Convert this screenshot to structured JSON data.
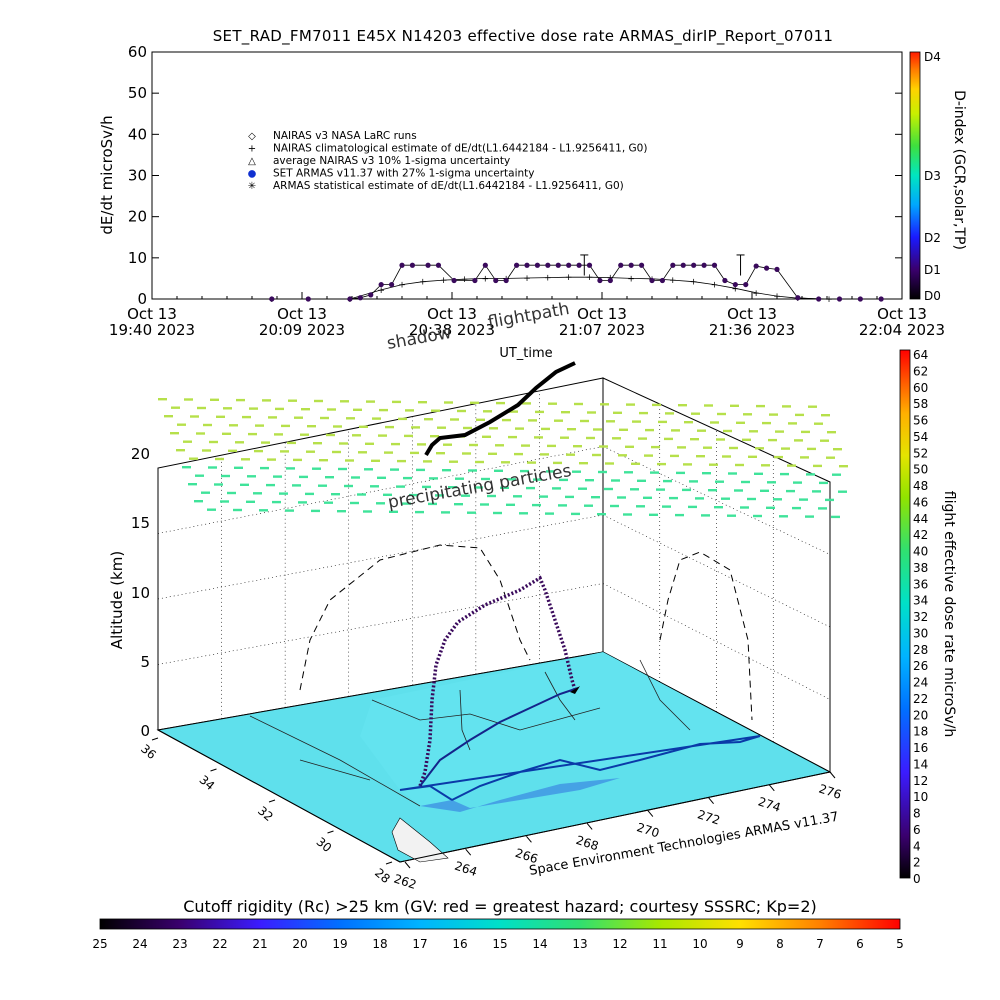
{
  "title": "SET_RAD_FM7011   E45X N14203 effective dose rate ARMAS_dirIP_Report_07011",
  "colors": {
    "series": "#3a0a5c",
    "climatology": "#000000",
    "ocean": "#5fe0ec",
    "precipitating": "#b6e04a",
    "precipitating_low": "#3fe39a"
  },
  "top_chart": {
    "ylabel": "dE/dt microSv/h",
    "ylim": [
      0,
      60
    ],
    "yticks": [
      "0",
      "10",
      "20",
      "30",
      "40",
      "50",
      "60"
    ],
    "xlabel": "UT_time",
    "xticks": [
      {
        "l1": "Oct 13",
        "l2": "19:40 2023"
      },
      {
        "l1": "Oct 13",
        "l2": "20:09 2023"
      },
      {
        "l1": "Oct 13",
        "l2": "20:38 2023"
      },
      {
        "l1": "Oct 13",
        "l2": "21:07 2023"
      },
      {
        "l1": "Oct 13",
        "l2": "21:36 2023"
      },
      {
        "l1": "Oct 13",
        "l2": "22:04 2023"
      }
    ],
    "legend": [
      {
        "symbol": "◇",
        "text": "NAIRAS v3 NASA LaRC runs"
      },
      {
        "symbol": "+",
        "text": "NAIRAS climatological estimate of dE/dt(L1.6442184 - L1.9256411, G0)"
      },
      {
        "symbol": "△",
        "text": "average NAIRAS v3 10% 1-sigma uncertainty"
      },
      {
        "symbol": "●",
        "text": "SET ARMAS v11.37 with 27% 1-sigma uncertainty"
      },
      {
        "symbol": "✳",
        "text": "ARMAS statistical estimate of dE/dt(L1.6442184 - L1.9256411, G0)"
      }
    ],
    "right_axis": {
      "label": "D-index (GCR,solar,TP)",
      "ticks": [
        "D4",
        "D3",
        "D2",
        "D1",
        "D0"
      ]
    }
  },
  "chart_data": [
    {
      "type": "line",
      "title": "SET_RAD_FM7011   E45X N14203 effective dose rate ARMAS_dirIP_Report_07011",
      "xlabel": "UT_time",
      "ylabel": "dE/dt microSv/h",
      "x_unit": "minutes after Oct 13 19:40 2023 UT",
      "xlim": [
        0,
        144
      ],
      "ylim": [
        0,
        60
      ],
      "series": [
        {
          "name": "SET ARMAS v11.37 with 27% 1-sigma uncertainty",
          "x": [
            23,
            30,
            38,
            40,
            42,
            44,
            46,
            48,
            50,
            53,
            55,
            58,
            62,
            64,
            66,
            68,
            70,
            72,
            74,
            76,
            78,
            80,
            82,
            84,
            86,
            88,
            90,
            92,
            94,
            96,
            98,
            100,
            102,
            104,
            106,
            108,
            110,
            112,
            114,
            116,
            118,
            120,
            124,
            128,
            132,
            136,
            140
          ],
          "y": [
            0,
            0,
            0,
            0.3,
            1,
            3.5,
            3.5,
            8.2,
            8.2,
            8.2,
            8.2,
            4.5,
            4.5,
            8.2,
            4.5,
            4.5,
            8.2,
            8.2,
            8.2,
            8.2,
            8.2,
            8.2,
            8.2,
            8.2,
            4.5,
            4.5,
            8.2,
            8.2,
            8.2,
            4.5,
            4.5,
            8.2,
            8.2,
            8.2,
            8.2,
            8.2,
            4.5,
            3.5,
            3.5,
            8.0,
            7.5,
            7.2,
            0.3,
            0,
            0,
            0,
            0
          ]
        },
        {
          "name": "NAIRAS climatological estimate of dE/dt(L1.6442184 - L1.9256411, G0)",
          "x": [
            23,
            38,
            44,
            48,
            52,
            56,
            60,
            64,
            68,
            72,
            76,
            80,
            84,
            88,
            92,
            96,
            100,
            104,
            108,
            112,
            116,
            120,
            124,
            130
          ],
          "y": [
            0,
            0,
            2.2,
            3.5,
            4.2,
            4.6,
            4.8,
            5.0,
            5.0,
            5.1,
            5.2,
            5.3,
            5.3,
            5.2,
            5.0,
            4.9,
            4.6,
            4.2,
            3.5,
            2.6,
            1.5,
            0.7,
            0.2,
            0
          ]
        }
      ]
    },
    {
      "type": "scatter",
      "title": "",
      "xlabel": "",
      "ylabel": "Altitude (km)",
      "zlim": [
        0,
        20
      ],
      "zticks": [
        "0",
        "5",
        "10",
        "15",
        "20"
      ],
      "lon_ticks": [
        "262",
        "264",
        "266",
        "268",
        "270",
        "272",
        "274",
        "276"
      ],
      "lat_ticks": [
        "28",
        "30",
        "32",
        "34",
        "36"
      ],
      "series": [
        {
          "name": "flightpath",
          "lon": [
            262.5,
            263.0,
            263.5,
            264.0,
            265.0,
            266.0,
            267.0,
            267.8,
            268.5
          ],
          "lat": [
            33.0,
            33.1,
            33.2,
            33.5,
            34.0,
            34.5,
            35.2,
            35.8,
            36.2
          ],
          "alt_km": [
            0,
            3,
            7,
            9.5,
            10.5,
            11,
            10.5,
            7,
            0
          ]
        }
      ]
    }
  ],
  "plot3d": {
    "ylabel": "Altitude (km)",
    "zticks": [
      "0",
      "5",
      "10",
      "15",
      "20"
    ],
    "lon_ticks": [
      "262",
      "264",
      "266",
      "268",
      "270",
      "272",
      "274",
      "276"
    ],
    "lat_ticks": [
      "28",
      "30",
      "32",
      "34",
      "36"
    ],
    "annotations": {
      "shadow": "shadow",
      "flightpath": "flightpath",
      "precipitating": "precipitating particles",
      "credit": "Space Environment Technologies ARMAS v11.37"
    },
    "right_colorbar": {
      "label": "flight effective dose rate microSv/h",
      "ticks": [
        "0",
        "2",
        "4",
        "6",
        "8",
        "10",
        "12",
        "14",
        "16",
        "18",
        "20",
        "22",
        "24",
        "26",
        "28",
        "30",
        "32",
        "34",
        "36",
        "38",
        "40",
        "42",
        "44",
        "46",
        "48",
        "50",
        "52",
        "54",
        "56",
        "58",
        "60",
        "62",
        "64"
      ]
    }
  },
  "bottom_colorbar": {
    "label": "Cutoff rigidity (Rc) >25 km (GV: red = greatest hazard; courtesy SSSRC; Kp=2)",
    "ticks": [
      "25",
      "24",
      "23",
      "22",
      "21",
      "20",
      "19",
      "18",
      "17",
      "16",
      "15",
      "14",
      "13",
      "12",
      "11",
      "10",
      "9",
      "8",
      "7",
      "6",
      "5"
    ]
  }
}
